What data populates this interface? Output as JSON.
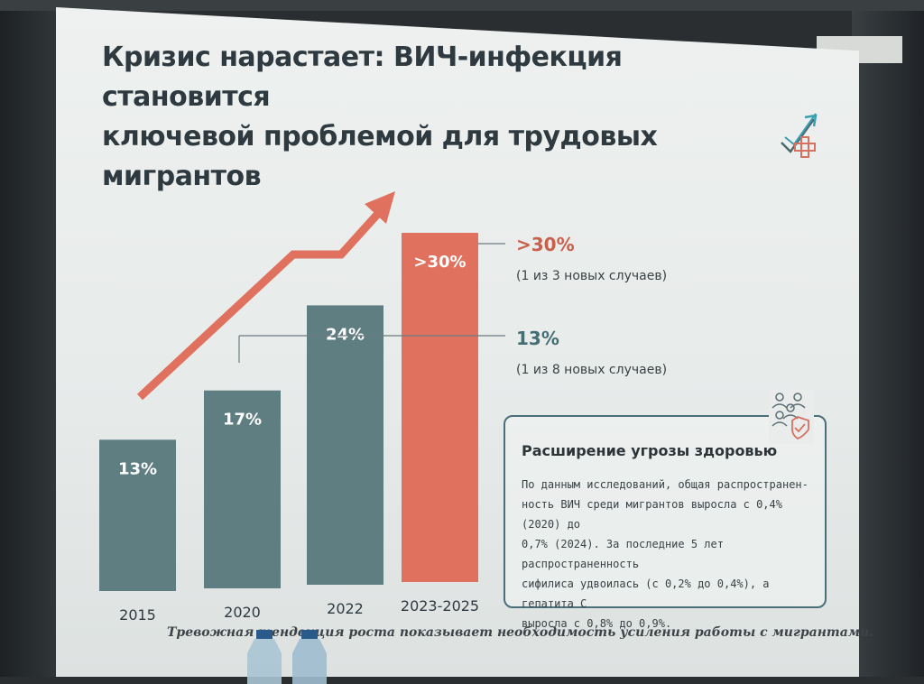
{
  "slide": {
    "title_lines": [
      "Кризис нарастает: ВИЧ-инфекция становится",
      "ключевой проблемой для трудовых мигрантов"
    ],
    "footer": "Тревожная тенденция роста показывает необходимость усиления работы с мигрантами.",
    "icons": [
      "growth-arrow-medical-icon",
      "people-shield-icon"
    ]
  },
  "callout": {
    "title": "Расширение угрозы здоровью",
    "body_lines": [
      "По данным исследований, общая распространен-",
      "ность ВИЧ среди мигрантов выросла с 0,4% (2020) до",
      "0,7% (2024). За последние 5 лет распространенность",
      "сифилиса удвоилась (с 0,2% до 0,4%), а гепатита С",
      "выросла с 0,8% до 0,9%."
    ]
  },
  "chart_data": {
    "type": "bar",
    "categories": [
      "2015",
      "2020",
      "2022",
      "2023-2025"
    ],
    "values": [
      13,
      17,
      24,
      30
    ],
    "labels": [
      "13%",
      "17%",
      "24%",
      ">30%"
    ],
    "highlight_index": 3,
    "ylim": [
      0,
      30
    ],
    "grid": false,
    "colors": {
      "bar": "#5f7e82",
      "highlight": "#e0715f",
      "arrow": "#e0715f",
      "accent_text": "#c9604c",
      "teal_text": "#456e74"
    },
    "annotations": [
      {
        "value": ">30%",
        "text": "(1 из 3 новых случаев)",
        "ref_index": 3,
        "color": "accent"
      },
      {
        "value": "13%",
        "text": "(1 из 8 новых случаев)",
        "ref_index": 0,
        "color": "teal"
      }
    ],
    "trend_arrow": true
  }
}
